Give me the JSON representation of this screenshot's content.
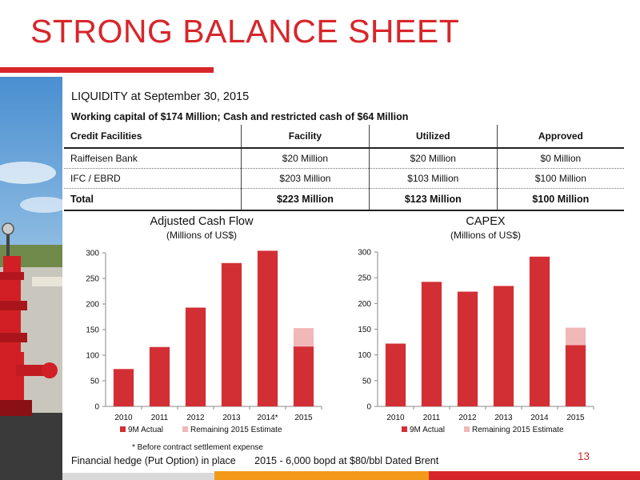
{
  "header": {
    "title": "STRONG BALANCE SHEET"
  },
  "liquidity": {
    "heading": "LIQUIDITY at September 30, 2015",
    "working_capital": "Working capital of $174 Million; Cash and restricted cash of $64 Million"
  },
  "credit_table": {
    "headers": [
      "Credit Facilities",
      "Facility",
      "Utilized",
      "Approved"
    ],
    "rows": [
      [
        "Raiffeisen Bank",
        "$20 Million",
        "$20 Million",
        "$0 Million"
      ],
      [
        "IFC / EBRD",
        "$203 Million",
        "$103 Million",
        "$100 Million"
      ]
    ],
    "total": [
      "Total",
      "$223 Million",
      "$123 Million",
      "$100 Million"
    ]
  },
  "chart_data": [
    {
      "type": "bar",
      "title": "Adjusted Cash Flow",
      "subtitle": "(Millions of US$)",
      "categories": [
        "2010",
        "2011",
        "2012",
        "2013",
        "2014*",
        "2015"
      ],
      "series": [
        {
          "name": "9M Actual",
          "values": [
            73,
            116,
            193,
            280,
            304,
            117
          ],
          "color": "#d22f35"
        },
        {
          "name": "Remaining 2015 Estimate",
          "values": [
            0,
            0,
            0,
            0,
            0,
            36
          ],
          "color": "#f2b8b8"
        }
      ],
      "stacked": true,
      "ylim": [
        0,
        300
      ],
      "yticks": [
        0,
        50,
        100,
        150,
        200,
        250,
        300
      ],
      "legend": "bottom"
    },
    {
      "type": "bar",
      "title": "CAPEX",
      "subtitle": "(Millions of US$)",
      "categories": [
        "2010",
        "2011",
        "2012",
        "2013",
        "2014",
        "2015"
      ],
      "series": [
        {
          "name": "9M Actual",
          "values": [
            122,
            242,
            223,
            234,
            291,
            119
          ],
          "color": "#d22f35"
        },
        {
          "name": "Remaining 2015 Estimate",
          "values": [
            0,
            0,
            0,
            0,
            0,
            34
          ],
          "color": "#f2b8b8"
        }
      ],
      "stacked": true,
      "ylim": [
        0,
        300
      ],
      "yticks": [
        0,
        50,
        100,
        150,
        200,
        250,
        300
      ],
      "legend": "bottom"
    }
  ],
  "footer": {
    "footnote": "* Before contract settlement expense",
    "hedge_label": "Financial hedge (Put Option) in place",
    "hedge_detail": "2015 - 6,000 bopd at $80/bbl Dated Brent",
    "page_number": "13"
  },
  "colors": {
    "brand_red": "#d7262b",
    "accent_orange": "#f39a1b"
  }
}
